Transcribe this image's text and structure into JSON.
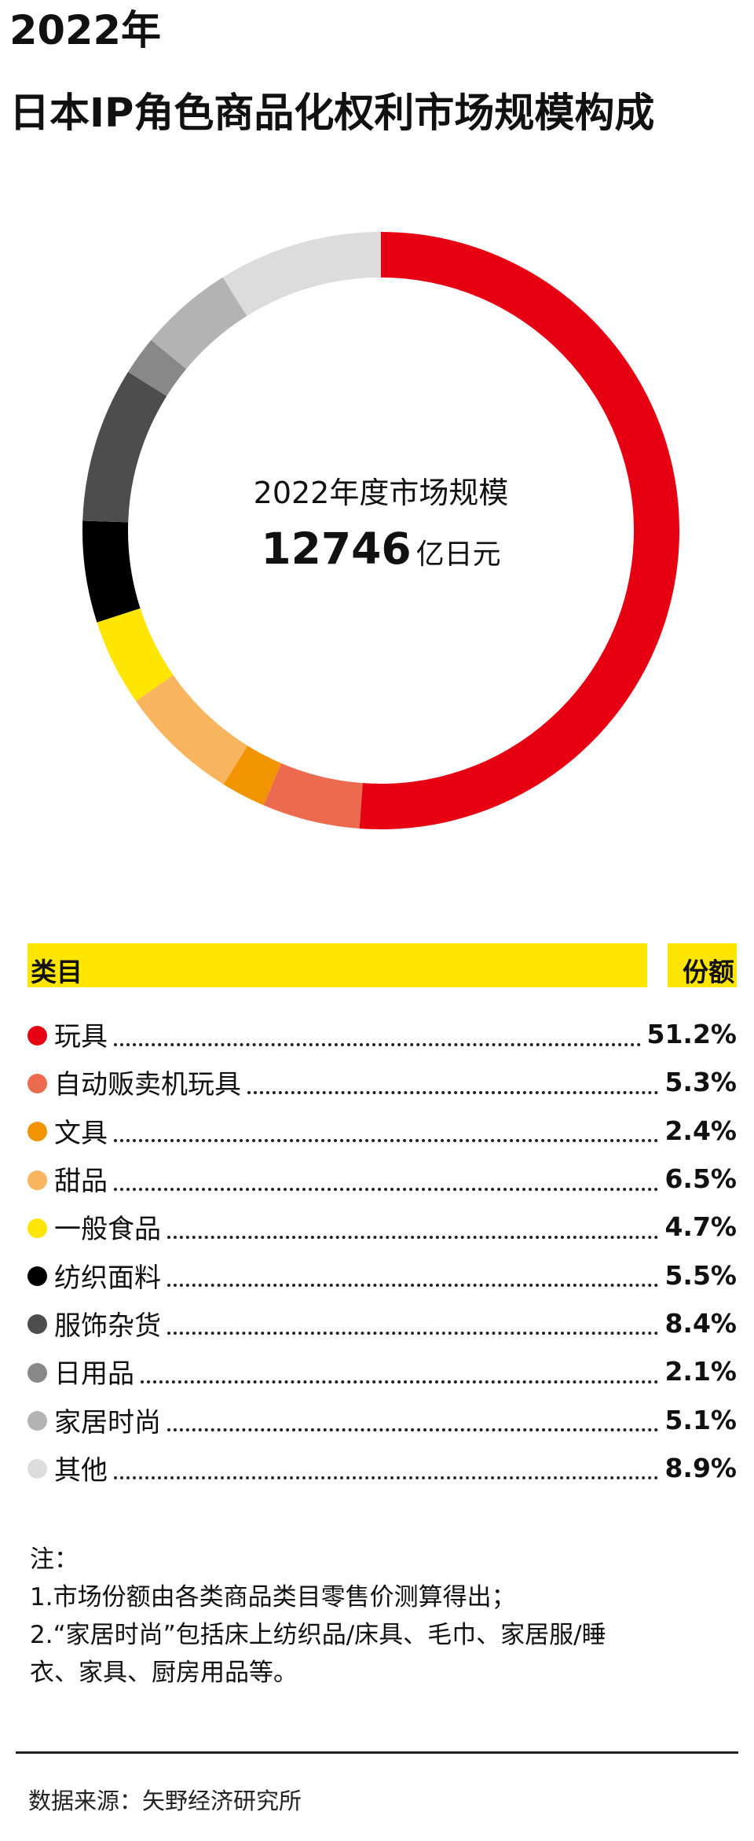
{
  "title": {
    "line1": "2022年",
    "line2": "日本IP角色商品化权利市场规模构成"
  },
  "chart_data": {
    "type": "pie",
    "title": "2022年 日本IP角色商品化权利市场规模构成",
    "center_label": "2022年度市场规模",
    "center_value": "12746",
    "center_unit": "亿日元",
    "categories": [
      "玩具",
      "自动贩卖机玩具",
      "文具",
      "甜品",
      "一般食品",
      "纺织面料",
      "服饰杂货",
      "日用品",
      "家居时尚",
      "其他"
    ],
    "values": [
      51.2,
      5.3,
      2.4,
      6.5,
      4.7,
      5.5,
      8.4,
      2.1,
      5.1,
      8.9
    ],
    "value_labels": [
      "51.2%",
      "5.3%",
      "2.4%",
      "6.5%",
      "4.7%",
      "5.5%",
      "8.4%",
      "2.1%",
      "5.1%",
      "8.9%"
    ],
    "colors": [
      "#E60012",
      "#EC6A4E",
      "#F29400",
      "#F8B55E",
      "#FFE600",
      "#000000",
      "#4D4D4D",
      "#888888",
      "#B3B3B3",
      "#DCDCDC"
    ],
    "donut": true
  },
  "table": {
    "header_category": "类目",
    "header_share": "份额"
  },
  "notes": {
    "heading": "注：",
    "line1": "1.市场份额由各类商品类目零售价测算得出；",
    "line2a": "2.“家居时尚”包括床上纺织品/床具、毛巾、家居服/睡",
    "line2b": "衣、家具、厨房用品等。"
  },
  "source": "数据来源：矢野经济研究所"
}
